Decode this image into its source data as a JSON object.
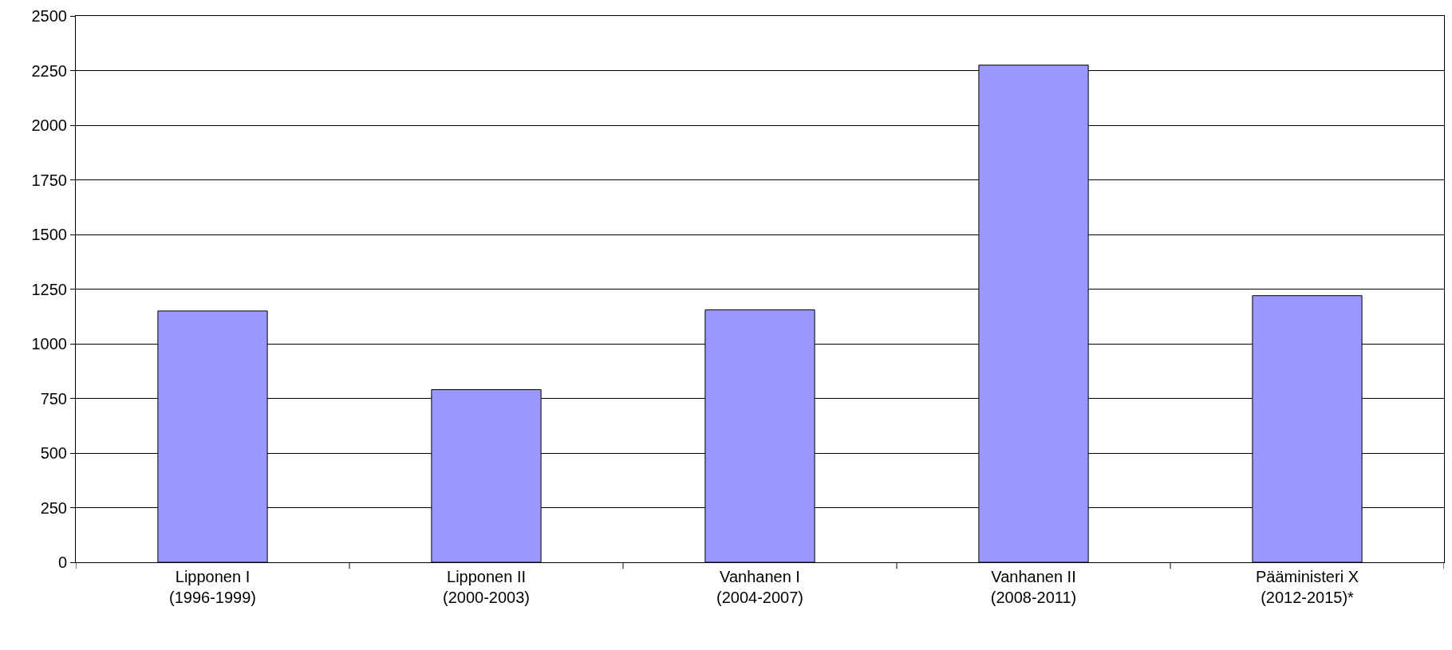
{
  "chart_data": {
    "type": "bar",
    "categories": [
      "Lipponen I\n(1996-1999)",
      "Lipponen II\n(2000-2003)",
      "Vanhanen I\n(2004-2007)",
      "Vanhanen II\n(2008-2011)",
      "Pääministeri X\n(2012-2015)*"
    ],
    "values": [
      1150,
      790,
      1155,
      2275,
      1220
    ],
    "color": "#9999ff",
    "ylim": [
      0,
      2500
    ],
    "yticks": [
      0,
      250,
      500,
      750,
      1000,
      1250,
      1500,
      1750,
      2000,
      2250,
      2500
    ],
    "grid": "y"
  }
}
